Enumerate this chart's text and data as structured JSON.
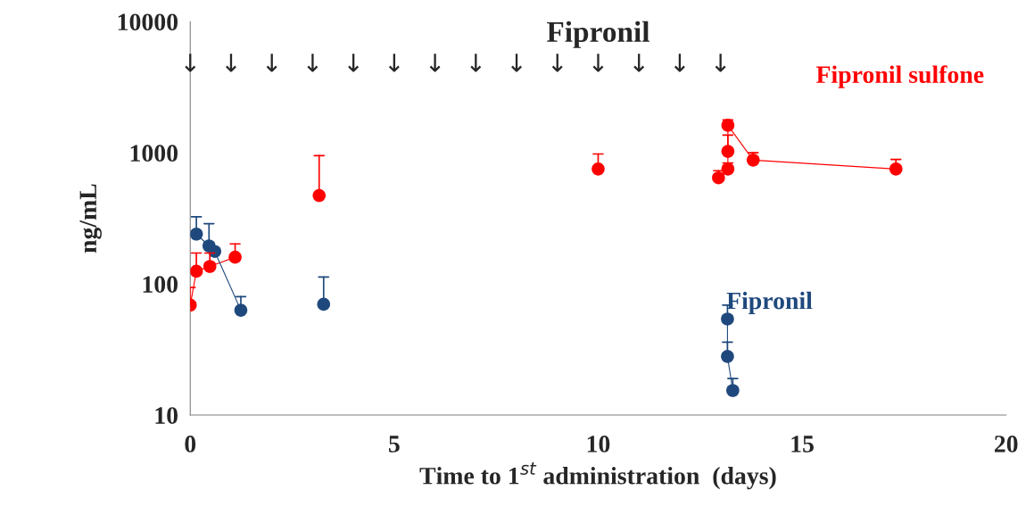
{
  "chart_data": {
    "type": "line",
    "title": "Fipronil",
    "xlabel": "Time to 1$^{st}$ administration  (days)",
    "ylabel": "ng/mL",
    "log": "y",
    "xlim": [
      0,
      20
    ],
    "xticks": [
      0,
      5,
      10,
      15,
      20
    ],
    "ylim": [
      10,
      10000
    ],
    "yticks": [
      10,
      100,
      1000,
      10000
    ],
    "grid": false,
    "legend": false,
    "marker": "circle",
    "line_style": "solid",
    "series": [
      {
        "name": "Fipronil sulfone",
        "color": "#ff0000",
        "x": [
          0,
          0.15,
          0.48,
          1.1
        ],
        "values": [
          69,
          125,
          136,
          160
        ],
        "errors": [
          [
            69,
            94
          ],
          [
            125,
            172
          ],
          [
            136,
            172
          ],
          [
            160,
            202
          ]
        ]
      },
      {
        "type": "scatter",
        "color": "#ff0000",
        "x": [
          3.16,
          10.0,
          12.95
        ],
        "values": [
          472,
          752,
          645
        ],
        "errors": [
          [
            472,
            950
          ],
          [
            752,
            980
          ],
          [
            645,
            730
          ]
        ]
      },
      {
        "color": "#ff0000",
        "x": [
          13.18,
          13.18,
          13.18,
          13.8,
          17.3
        ],
        "values": [
          752,
          1025,
          1620,
          880,
          752
        ],
        "errors": [
          [
            752,
            835
          ],
          [
            1025,
            1365
          ],
          [
            1620,
            1780
          ],
          [
            880,
            1000
          ],
          [
            752,
            890
          ]
        ]
      },
      {
        "name": "Fipronil",
        "color": "#1f497d",
        "x": [
          0.15,
          0.46,
          0.6,
          1.24
        ],
        "values": [
          240,
          195,
          177,
          63
        ],
        "errors": [
          [
            240,
            325
          ],
          [
            195,
            288
          ],
          null,
          [
            63,
            80
          ]
        ]
      },
      {
        "type": "scatter",
        "color": "#1f497d",
        "x": [
          3.27
        ],
        "values": [
          70
        ],
        "errors": [
          [
            70,
            113
          ]
        ]
      },
      {
        "color": "#1f497d",
        "x": [
          13.17,
          13.17,
          13.3
        ],
        "values": [
          54,
          28,
          15.4
        ],
        "errors": [
          [
            54,
            69
          ],
          [
            28,
            36
          ],
          [
            15.4,
            19
          ]
        ]
      }
    ],
    "annotations": [
      "↓",
      "↓",
      "↓",
      "↓",
      "↓",
      "↓",
      "↓",
      "↓",
      "↓",
      "↓",
      "↓",
      "↓",
      "↓",
      "↓"
    ]
  }
}
